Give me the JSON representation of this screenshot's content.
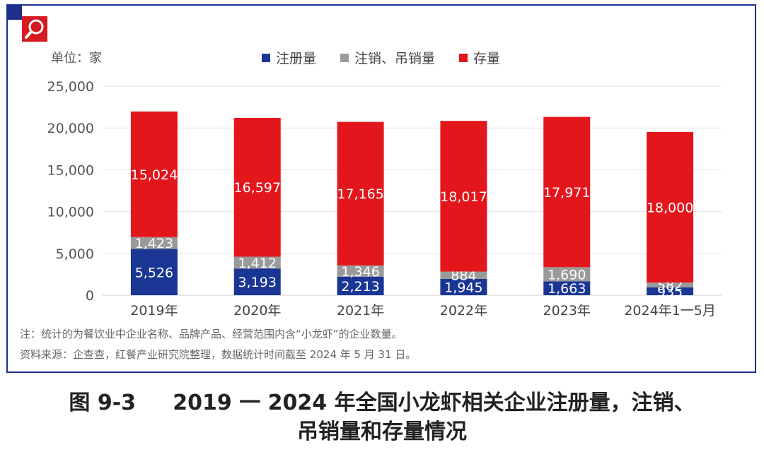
{
  "unit_label": "单位：家",
  "notes": [
    "注：统计的为餐饮业中企业名称、品牌产品、经营范围内含“小龙虾”的企业数量。",
    "资料来源：企查查，红餐产业研究院整理，数据统计时间截至 2024 年 5 月 31 日。"
  ],
  "caption": {
    "line1": "图 9-3     2019 一 2024 年全国小龙虾相关企业注册量，注销、",
    "line2": "吊销量和存量情况"
  },
  "colors": {
    "frame": "#1d2f8a",
    "logo": "#d71920"
  },
  "chart_data": {
    "type": "bar",
    "stacked": true,
    "categories": [
      "2019年",
      "2020年",
      "2021年",
      "2022年",
      "2023年",
      "2024年1一5月"
    ],
    "series": [
      {
        "name": "注册量",
        "color": "#1a3694",
        "values": [
          5526,
          3193,
          2213,
          1945,
          1663,
          935
        ],
        "labels": [
          "5,526",
          "3,193",
          "2,213",
          "1,945",
          "1,663",
          "935"
        ]
      },
      {
        "name": "注销、吊销量",
        "color": "#9a9a9a",
        "values": [
          1423,
          1412,
          1346,
          884,
          1690,
          582
        ],
        "labels": [
          "1,423",
          "1,412",
          "1,346",
          "884",
          "1,690",
          "582"
        ]
      },
      {
        "name": "存量",
        "color": "#e3161c",
        "values": [
          15024,
          16597,
          17165,
          18017,
          17971,
          18000
        ],
        "labels": [
          "15,024",
          "16,597",
          "17,165",
          "18,017",
          "17,971",
          "18,000"
        ]
      }
    ],
    "y_ticks": [
      0,
      5000,
      10000,
      15000,
      20000,
      25000
    ],
    "y_tick_labels": [
      "0",
      "5,000",
      "10,000",
      "15,000",
      "20,000",
      "25,000"
    ],
    "ylim": [
      0,
      25000
    ],
    "grid": true,
    "legend_position": "top"
  }
}
